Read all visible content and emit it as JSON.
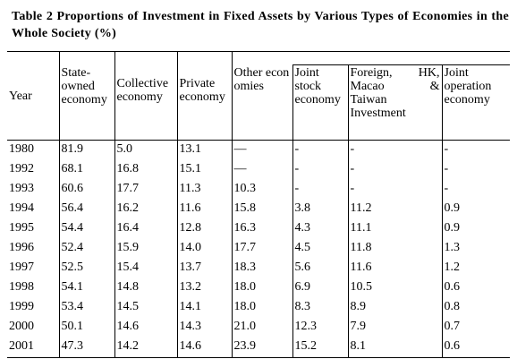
{
  "title": "Table 2 Proportions of Investment in Fixed Assets by Various Types of Economies in the Whole Society (%)",
  "headers": {
    "year": "Year",
    "state": "State-owned economy",
    "collective": "Collective economy",
    "private": "Private economy",
    "other": "Other economies",
    "joint_stock": "Joint stock economy",
    "foreign_line1_a": "Foreign,",
    "foreign_line1_b": "HK,",
    "foreign_line2_a": "Macao",
    "foreign_line2_b": "&",
    "foreign_line3": "Taiwan",
    "foreign_line4": "Investment",
    "joint_operation": "Joint operation economy"
  },
  "rows": [
    [
      "1980",
      "81.9",
      "5.0",
      "13.1",
      "—",
      "-",
      "-",
      "-"
    ],
    [
      "1992",
      "68.1",
      "16.8",
      "15.1",
      "—",
      "-",
      "-",
      "-"
    ],
    [
      "1993",
      "60.6",
      "17.7",
      "11.3",
      "10.3",
      "-",
      "-",
      "-"
    ],
    [
      "1994",
      "56.4",
      "16.2",
      "11.6",
      "15.8",
      "3.8",
      "11.2",
      "0.9"
    ],
    [
      "1995",
      "54.4",
      "16.4",
      "12.8",
      "16.3",
      "4.3",
      "11.1",
      "0.9"
    ],
    [
      "1996",
      "52.4",
      "15.9",
      "14.0",
      "17.7",
      "4.5",
      "11.8",
      "1.3"
    ],
    [
      "1997",
      "52.5",
      "15.4",
      "13.7",
      "18.3",
      "5.6",
      "11.6",
      "1.2"
    ],
    [
      "1998",
      "54.1",
      "14.8",
      "13.2",
      "18.0",
      "6.9",
      "10.5",
      "0.6"
    ],
    [
      "1999",
      "53.4",
      "14.5",
      "14.1",
      "18.0",
      "8.3",
      "8.9",
      "0.8"
    ],
    [
      "2000",
      "50.1",
      "14.6",
      "14.3",
      "21.0",
      "12.3",
      "7.9",
      "0.7"
    ],
    [
      "2001",
      "47.3",
      "14.2",
      "14.6",
      "23.9",
      "15.2",
      "8.1",
      "0.6"
    ]
  ]
}
